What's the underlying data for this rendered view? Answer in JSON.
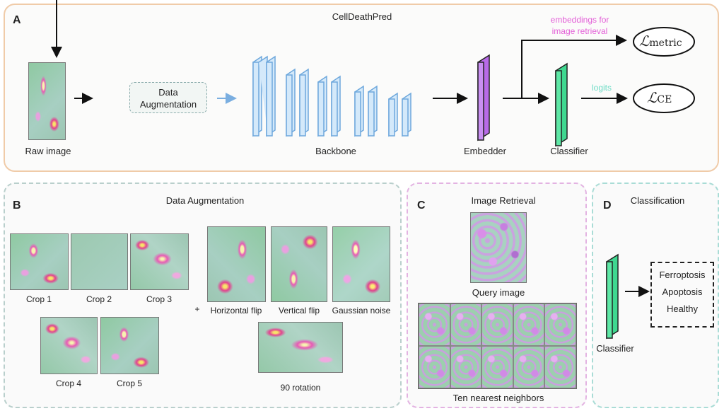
{
  "panel_a": {
    "letter": "A",
    "title": "CellDeathPred",
    "raw_image_label": "Raw image",
    "data_augmentation_box": [
      "Data",
      "Augmentation"
    ],
    "backbone_label": "Backbone",
    "embedder_label": "Embedder",
    "classifier_label": "Classifier",
    "embeddings_note": [
      "embeddings for",
      "image retrieval"
    ],
    "logits_note": "logits",
    "loss_metric": {
      "symbol": "ℒ",
      "sub": "metric"
    },
    "loss_ce": {
      "symbol": "ℒ",
      "sub": "CE"
    },
    "colors": {
      "embedder": "#c07ff0",
      "classifier": "#4fe0a0",
      "backbone": "#cfe6f8",
      "note_pink": "#e35fd8",
      "note_teal": "#6fdcc6"
    }
  },
  "panel_b": {
    "letter": "B",
    "title": "Data Augmentation",
    "crops": [
      "Crop 1",
      "Crop 2",
      "Crop 3",
      "Crop 4",
      "Crop 5"
    ],
    "plus": "+",
    "transforms": [
      "Horizontal flip",
      "Vertical flip",
      "Gaussian noise",
      "90 rotation"
    ]
  },
  "panel_c": {
    "letter": "C",
    "title": "Image Retrieval",
    "query_label": "Query image",
    "neighbors_label": "Ten nearest neighbors"
  },
  "panel_d": {
    "letter": "D",
    "title": "Classification",
    "classes": [
      "Ferroptosis",
      "Apoptosis",
      "Healthy"
    ],
    "classifier_label": "Classifier"
  }
}
